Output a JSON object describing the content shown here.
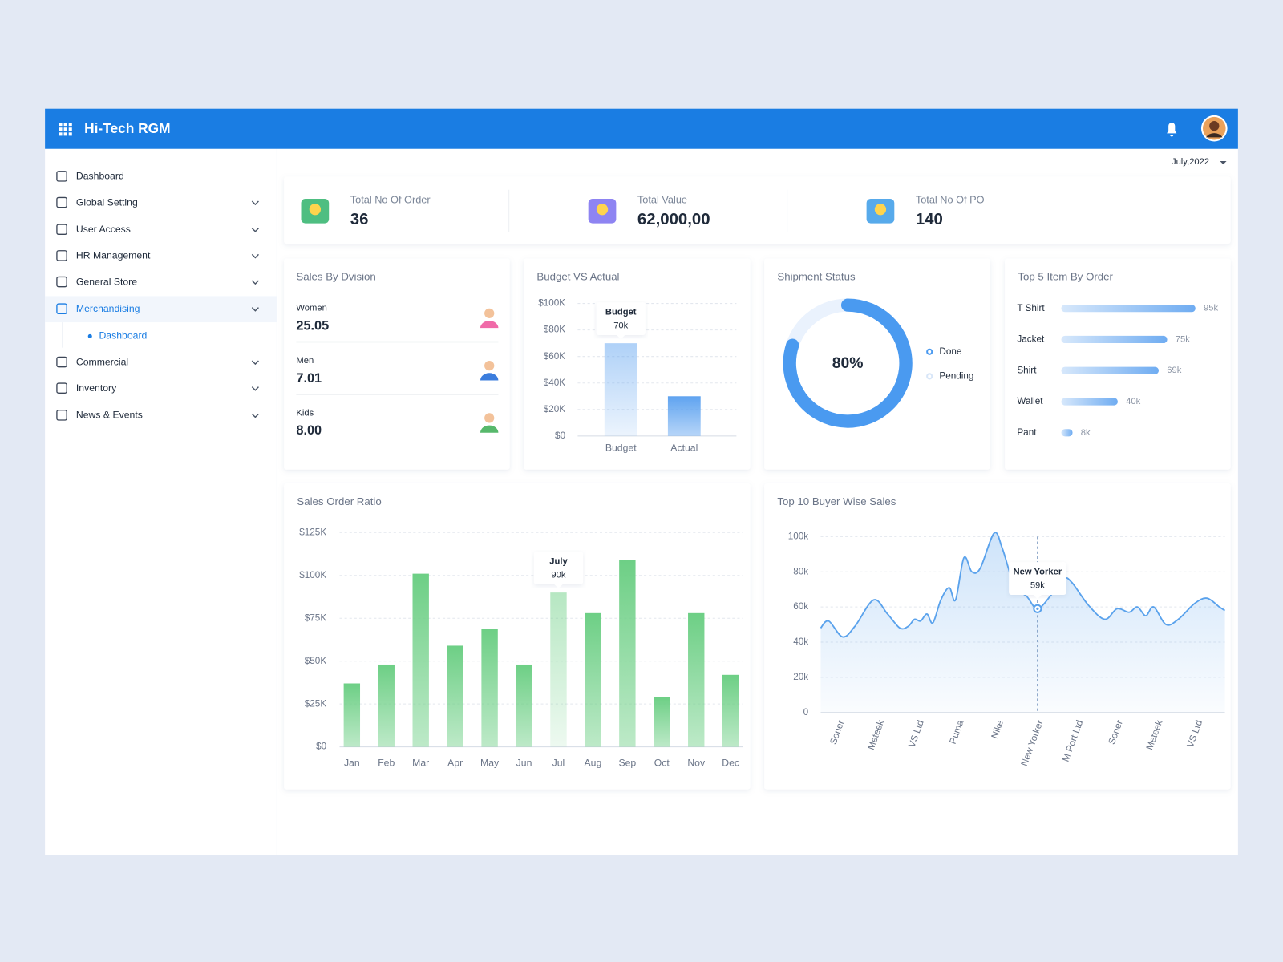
{
  "header": {
    "title": "Hi-Tech RGM"
  },
  "date_filter": "July,2022",
  "sidebar": {
    "items": [
      {
        "label": "Dashboard"
      },
      {
        "label": "Global Setting"
      },
      {
        "label": "User Access"
      },
      {
        "label": "HR Management"
      },
      {
        "label": "General Store"
      },
      {
        "label": "Merchandising",
        "active": true,
        "children": [
          {
            "label": "Dashboard"
          }
        ]
      },
      {
        "label": "Commercial"
      },
      {
        "label": "Inventory"
      },
      {
        "label": "News & Events"
      }
    ]
  },
  "kpis": [
    {
      "label": "Total No Of Order",
      "value": "36"
    },
    {
      "label": "Total Value",
      "value": "62,000,00"
    },
    {
      "label": "Total No Of PO",
      "value": "140"
    }
  ],
  "sales_by_division": {
    "title": "Sales By Dvision",
    "items": [
      {
        "label": "Women",
        "value": "25.05"
      },
      {
        "label": "Men",
        "value": "7.01"
      },
      {
        "label": "Kids",
        "value": "8.00"
      }
    ]
  },
  "chart_data": [
    {
      "type": "bar",
      "title": "Budget VS Actual",
      "categories": [
        "Budget",
        "Actual"
      ],
      "values": [
        70000,
        30000
      ],
      "value_labels": [
        "70k",
        null
      ],
      "color": "#5fa3f0",
      "ylim": [
        0,
        100000
      ],
      "yticks": [
        {
          "value": 0,
          "label": "$0"
        },
        {
          "value": 20000,
          "label": "$20K"
        },
        {
          "value": 40000,
          "label": "$40K"
        },
        {
          "value": 60000,
          "label": "$60K"
        },
        {
          "value": 80000,
          "label": "$80K"
        },
        {
          "value": 100000,
          "label": "$100K"
        }
      ],
      "grid": true
    },
    {
      "type": "donut",
      "title": "Shipment Status",
      "categories": [
        "Done",
        "Pending"
      ],
      "values": [
        80,
        20
      ],
      "value_labels": [
        "80%",
        null
      ],
      "colors": [
        "#4a9af0",
        "#eaf2fd"
      ]
    },
    {
      "type": "hbar",
      "title": "Top 5 Item By Order",
      "categories": [
        "T Shirt",
        "Jacket",
        "Shirt",
        "Wallet",
        "Pant"
      ],
      "values": [
        95000,
        75000,
        69000,
        40000,
        8000
      ],
      "value_labels": [
        "95k",
        "75k",
        "69k",
        "40k",
        "8k"
      ],
      "color": "#5fa3f0"
    },
    {
      "type": "bar",
      "title": "Sales Order Ratio",
      "categories": [
        "Jan",
        "Feb",
        "Mar",
        "Apr",
        "May",
        "Jun",
        "Jul",
        "Aug",
        "Sep",
        "Oct",
        "Nov",
        "Dec"
      ],
      "values": [
        37000,
        48000,
        101000,
        59000,
        69000,
        48000,
        90000,
        78000,
        109000,
        29000,
        78000,
        42000
      ],
      "value_labels": [
        null,
        null,
        null,
        null,
        null,
        null,
        "90k",
        null,
        null,
        null,
        null,
        null
      ],
      "tooltip_title": "July",
      "color": "#6dcf85",
      "ylim": [
        0,
        125000
      ],
      "yticks": [
        {
          "value": 0,
          "label": "$0"
        },
        {
          "value": 25000,
          "label": "$25K"
        },
        {
          "value": 50000,
          "label": "$50K"
        },
        {
          "value": 75000,
          "label": "$75K"
        },
        {
          "value": 100000,
          "label": "$100K"
        },
        {
          "value": 125000,
          "label": "$125K"
        }
      ],
      "grid": true
    },
    {
      "type": "area",
      "title": "Top 10 Buyer Wise Sales",
      "x": [
        -0.45,
        -0.25,
        0.1,
        0.41,
        0.88,
        1.23,
        1.54,
        1.75,
        1.91,
        2.06,
        2.22,
        2.37,
        2.57,
        2.78,
        2.94,
        3.15,
        3.35,
        3.56,
        3.91,
        4.12,
        4.42,
        4.73,
        5,
        5.35,
        5.66,
        5.86,
        6.28,
        6.69,
        7,
        7.3,
        7.51,
        7.72,
        7.92,
        8.23,
        8.54,
        8.95,
        9.26,
        9.57,
        9.71
      ],
      "values": [
        48000,
        52000,
        43000,
        49000,
        64000,
        56000,
        48000,
        49000,
        53000,
        52000,
        56000,
        51000,
        64000,
        71000,
        64000,
        88000,
        80000,
        82000,
        102000,
        93000,
        72000,
        66000,
        59000,
        67000,
        76000,
        74000,
        61000,
        53000,
        59000,
        57000,
        60000,
        55000,
        60000,
        50000,
        53000,
        62000,
        65000,
        60000,
        58000
      ],
      "value_labels": [
        null,
        null,
        null,
        null,
        null,
        null,
        null,
        null,
        null,
        null,
        null,
        null,
        null,
        null,
        null,
        null,
        null,
        null,
        null,
        null,
        null,
        null,
        "59k",
        null,
        null,
        null,
        null,
        null,
        null,
        null,
        null,
        null,
        null,
        null,
        null,
        null,
        null,
        null,
        null
      ],
      "color": "#5aa2ec",
      "xlim": [
        -0.45,
        9.71
      ],
      "xticks": [
        {
          "value": 0,
          "label": "Soner"
        },
        {
          "value": 1,
          "label": "Meteek"
        },
        {
          "value": 2,
          "label": "VS Ltd"
        },
        {
          "value": 3,
          "label": "Puma"
        },
        {
          "value": 4,
          "label": "Nike"
        },
        {
          "value": 5,
          "label": "New Yorker"
        },
        {
          "value": 6,
          "label": "M Port Ltd"
        },
        {
          "value": 7,
          "label": "Soner"
        },
        {
          "value": 8,
          "label": "Meteek"
        },
        {
          "value": 9,
          "label": "VS Ltd"
        }
      ],
      "ylim": [
        0,
        100000
      ],
      "yticks": [
        0,
        {
          "value": 20000,
          "label": "20k"
        },
        {
          "value": 40000,
          "label": "40k"
        },
        {
          "value": 60000,
          "label": "60k"
        },
        {
          "value": 80000,
          "label": "80k"
        },
        {
          "value": 100000,
          "label": "100k"
        }
      ],
      "grid": true
    }
  ]
}
